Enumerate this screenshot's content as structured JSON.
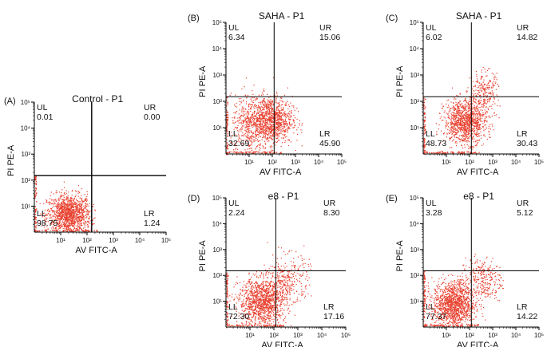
{
  "chart_data": [
    {
      "type": "scatter",
      "panel_label": "(A)",
      "title": "Control  - P1",
      "xlabel": "AV FITC-A",
      "ylabel": "PI PE-A",
      "scale": "log",
      "xlim": [
        1,
        100000
      ],
      "ylim": [
        1,
        100000
      ],
      "tick_labels": [
        "10¹",
        "10²",
        "10³",
        "10⁴",
        "10⁵"
      ],
      "gates": {
        "x": 150,
        "y": 150
      },
      "quadrants": [
        {
          "label": "UL",
          "value": "0.01"
        },
        {
          "label": "UR",
          "value": "0.00"
        },
        {
          "label": "LL",
          "value": "98.75"
        },
        {
          "label": "LR",
          "value": "1.24"
        }
      ]
    },
    {
      "type": "scatter",
      "panel_label": "(B)",
      "title": "SAHA - P1",
      "xlabel": "AV FITC-A",
      "ylabel": "PI PE-A",
      "scale": "log",
      "xlim": [
        1,
        100000
      ],
      "ylim": [
        1,
        100000
      ],
      "tick_labels": [
        "10¹",
        "10²",
        "10³",
        "10⁴",
        "10⁵"
      ],
      "gates": {
        "x": 120,
        "y": 150
      },
      "quadrants": [
        {
          "label": "UL",
          "value": "6.34"
        },
        {
          "label": "UR",
          "value": "15.06"
        },
        {
          "label": "LL",
          "value": "32.69"
        },
        {
          "label": "LR",
          "value": "45.90"
        }
      ]
    },
    {
      "type": "scatter",
      "panel_label": "(C)",
      "title": "SAHA - P1",
      "xlabel": "AV FITC-A",
      "ylabel": "PI PE-A",
      "scale": "log",
      "xlim": [
        1,
        100000
      ],
      "ylim": [
        1,
        100000
      ],
      "tick_labels": [
        "10¹",
        "10²",
        "10³",
        "10⁴",
        "10⁵"
      ],
      "gates": {
        "x": 120,
        "y": 150
      },
      "quadrants": [
        {
          "label": "UL",
          "value": "6.02"
        },
        {
          "label": "UR",
          "value": "14.82"
        },
        {
          "label": "LL",
          "value": "48.73"
        },
        {
          "label": "LR",
          "value": "30.43"
        }
      ]
    },
    {
      "type": "scatter",
      "panel_label": "(D)",
      "title": "e8 - P1",
      "xlabel": "AV FITC-A",
      "ylabel": "PI PE-A",
      "scale": "log",
      "xlim": [
        1,
        100000
      ],
      "ylim": [
        1,
        100000
      ],
      "tick_labels": [
        "10¹",
        "10²",
        "10³",
        "10⁴",
        "10⁵"
      ],
      "gates": {
        "x": 120,
        "y": 150
      },
      "quadrants": [
        {
          "label": "UL",
          "value": "2.24"
        },
        {
          "label": "UR",
          "value": "8.30"
        },
        {
          "label": "LL",
          "value": "72.30"
        },
        {
          "label": "LR",
          "value": "17.16"
        }
      ]
    },
    {
      "type": "scatter",
      "panel_label": "(E)",
      "title": "e8 - P1",
      "xlabel": "AV FITC-A",
      "ylabel": "PI PE-A",
      "scale": "log",
      "xlim": [
        1,
        100000
      ],
      "ylim": [
        1,
        100000
      ],
      "tick_labels": [
        "10¹",
        "10²",
        "10³",
        "10⁴",
        "10⁵"
      ],
      "gates": {
        "x": 120,
        "y": 150
      },
      "quadrants": [
        {
          "label": "UL",
          "value": "3.28"
        },
        {
          "label": "UR",
          "value": "5.12"
        },
        {
          "label": "LL",
          "value": "77.37"
        },
        {
          "label": "LR",
          "value": "14.22"
        }
      ]
    }
  ],
  "colors": {
    "points": "#e8402f",
    "axis": "#000000"
  }
}
